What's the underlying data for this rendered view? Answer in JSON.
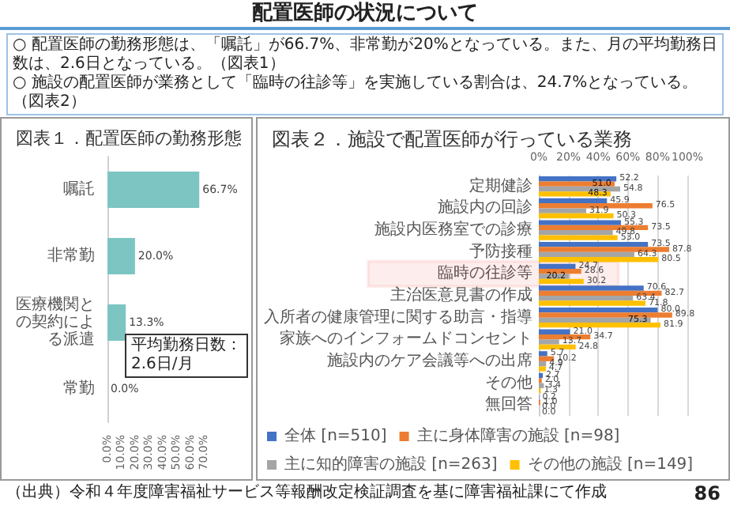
{
  "chart_data": [
    {
      "type": "other",
      "title": "配置医師の状況について",
      "annotations": [
        "○ 配置医師の勤務形態は、「嘱託」が66.7%、非常勤が20%となっている。また、月の平均勤務日数は、2.6日となっている。（図表1）",
        "○ 施設の配置医師が業務として「臨時の往診等」を実施している割合は、24.7%となっている。（図表2）",
        "（出典）令和４年度障害福祉サービス等報酬改定検証調査を基に障害福祉課にて作成",
        "86"
      ]
    },
    {
      "type": "bar",
      "orientation": "horizontal",
      "title": "図表１．配置医師の勤務形態",
      "categories": [
        "嘱託",
        "非常勤",
        "医療機関との契約による派遣",
        "常勤"
      ],
      "values": [
        66.7,
        20.0,
        13.3,
        0.0
      ],
      "color": "#7cc5c2",
      "value_labels": [
        "66.7%",
        "20.0%",
        "13.3%",
        "0.0%"
      ],
      "xlim": [
        0,
        70
      ],
      "xticks": [
        {
          "value": 0,
          "label": "0.0%"
        },
        {
          "value": 10,
          "label": "10.0%"
        },
        {
          "value": 20,
          "label": "20.0%"
        },
        {
          "value": 30,
          "label": "30.0%"
        },
        {
          "value": 40,
          "label": "40.0%"
        },
        {
          "value": 50,
          "label": "50.0%"
        },
        {
          "value": 60,
          "label": "60.0%"
        },
        {
          "value": 70,
          "label": "70.0%"
        }
      ],
      "annotations": [
        "平均勤務日数：\n2.6日/月"
      ]
    },
    {
      "type": "bar",
      "orientation": "horizontal",
      "title": "図表２．施設で配置医師が行っている業務",
      "categories": [
        "定期健診",
        "施設内の回診",
        "施設内医務室での診療",
        "予防接種",
        "臨時の往診等",
        "主治医意見書の作成",
        "入所者の健康管理に関する助言・指導",
        "家族へのインフォームドコンセント",
        "施設内のケア会議等への出席",
        "その他",
        "無回答"
      ],
      "series": [
        {
          "name": "全体 [n=510]",
          "color": "#4472c4",
          "values": [
            52.2,
            45.9,
            55.3,
            73.5,
            24.7,
            70.6,
            80.0,
            21.0,
            5.7,
            2.7,
            0.2
          ],
          "value_labels": [
            "52.2",
            "45.9",
            "55.3",
            "73.5",
            "24.7",
            "70.6",
            "80.0",
            "21.0",
            "5.7",
            "2.7",
            "0.2"
          ]
        },
        {
          "name": "主に身体障害の施設 [n=98]",
          "color": "#ed7d31",
          "values": [
            51.0,
            76.5,
            73.5,
            87.8,
            28.6,
            82.7,
            89.8,
            34.7,
            10.2,
            2.0,
            1.0
          ],
          "value_labels": [
            "51.0",
            "76.5",
            "73.5",
            "87.8",
            "28.6",
            "82.7",
            "89.8",
            "34.7",
            "10.2",
            "2.0",
            "1.0"
          ]
        },
        {
          "name": "主に知的障害の施設 [n=263]",
          "color": "#a5a5a5",
          "values": [
            54.8,
            31.9,
            49.8,
            64.3,
            20.2,
            63.4,
            75.3,
            13.7,
            4.9,
            3.4,
            0.0
          ],
          "value_labels": [
            "54.8",
            "31.9",
            "49.8",
            "64.3",
            "20.2",
            "63.4",
            "75.3",
            "13.7",
            "4.9",
            "3.4",
            "0.0"
          ]
        },
        {
          "name": "その他の施設 [n=149]",
          "color": "#ffc000",
          "values": [
            48.3,
            50.3,
            53.0,
            80.5,
            30.2,
            71.8,
            81.9,
            24.8,
            4.7,
            1.3,
            0.0
          ],
          "value_labels": [
            "48.3",
            "50.3",
            "53.0",
            "80.5",
            "30.2",
            "71.8",
            "81.9",
            "24.8",
            "4.7",
            "1.3",
            "0.0"
          ]
        }
      ],
      "x2lim": [
        0,
        100
      ],
      "x2ticks": [
        {
          "value": 0,
          "label": "0%"
        },
        {
          "value": 20,
          "label": "20%"
        },
        {
          "value": 40,
          "label": "40%"
        },
        {
          "value": 60,
          "label": "60%"
        },
        {
          "value": 80,
          "label": "80%"
        },
        {
          "value": 100,
          "label": "100%"
        }
      ],
      "grid": "x",
      "legend": "bottom",
      "bands": [
        {
          "axis": "y",
          "from": "臨時の往診等",
          "to": "臨時の往診等",
          "color": "#e0201f"
        }
      ]
    }
  ]
}
